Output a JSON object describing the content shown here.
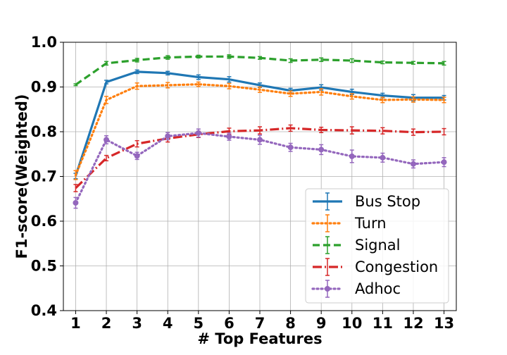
{
  "chart_data": {
    "type": "line",
    "xlabel": "# Top Features",
    "ylabel": "F1-score(Weighted)",
    "x": [
      1,
      2,
      3,
      4,
      5,
      6,
      7,
      8,
      9,
      10,
      11,
      12,
      13
    ],
    "xticks": [
      "1",
      "2",
      "3",
      "4",
      "5",
      "6",
      "7",
      "8",
      "9",
      "10",
      "11",
      "12",
      "13"
    ],
    "ylim": [
      0.4,
      1.0
    ],
    "yticks": [
      "0.4",
      "0.5",
      "0.6",
      "0.7",
      "0.8",
      "0.9",
      "1.0"
    ],
    "grid": true,
    "legend_position": "lower-right",
    "error_bars": true,
    "series": [
      {
        "name": "Bus Stop",
        "color": "#1f77b4",
        "style": "solid",
        "values": [
          0.701,
          0.911,
          0.934,
          0.931,
          0.922,
          0.917,
          0.904,
          0.892,
          0.899,
          0.889,
          0.881,
          0.876,
          0.876
        ],
        "errors": [
          0.006,
          0.004,
          0.004,
          0.004,
          0.005,
          0.006,
          0.005,
          0.005,
          0.006,
          0.006,
          0.005,
          0.007,
          0.005
        ]
      },
      {
        "name": "Turn",
        "color": "#ff7f0e",
        "style": "dotted",
        "values": [
          0.703,
          0.871,
          0.902,
          0.904,
          0.906,
          0.902,
          0.894,
          0.885,
          0.889,
          0.879,
          0.871,
          0.872,
          0.871
        ],
        "errors": [
          0.01,
          0.008,
          0.007,
          0.006,
          0.005,
          0.006,
          0.006,
          0.006,
          0.007,
          0.006,
          0.006,
          0.006,
          0.006
        ]
      },
      {
        "name": "Signal",
        "color": "#2ca02c",
        "style": "dashed",
        "values": [
          0.905,
          0.953,
          0.96,
          0.966,
          0.968,
          0.968,
          0.965,
          0.959,
          0.961,
          0.959,
          0.955,
          0.954,
          0.953
        ],
        "errors": [
          0.002,
          0.004,
          0.004,
          0.004,
          0.003,
          0.004,
          0.003,
          0.004,
          0.004,
          0.004,
          0.003,
          0.003,
          0.004
        ]
      },
      {
        "name": "Congestion",
        "color": "#d62728",
        "style": "dashdot",
        "values": [
          0.674,
          0.741,
          0.773,
          0.785,
          0.794,
          0.801,
          0.803,
          0.808,
          0.804,
          0.803,
          0.802,
          0.799,
          0.8
        ],
        "errors": [
          0.008,
          0.006,
          0.007,
          0.008,
          0.007,
          0.007,
          0.008,
          0.007,
          0.006,
          0.008,
          0.007,
          0.007,
          0.007
        ]
      },
      {
        "name": "Adhoc",
        "color": "#9467bd",
        "style": "dotted",
        "values": [
          0.641,
          0.782,
          0.746,
          0.79,
          0.797,
          0.789,
          0.782,
          0.765,
          0.76,
          0.745,
          0.742,
          0.728,
          0.732
        ],
        "errors": [
          0.012,
          0.009,
          0.008,
          0.008,
          0.009,
          0.008,
          0.01,
          0.009,
          0.011,
          0.014,
          0.01,
          0.009,
          0.01
        ]
      }
    ]
  }
}
